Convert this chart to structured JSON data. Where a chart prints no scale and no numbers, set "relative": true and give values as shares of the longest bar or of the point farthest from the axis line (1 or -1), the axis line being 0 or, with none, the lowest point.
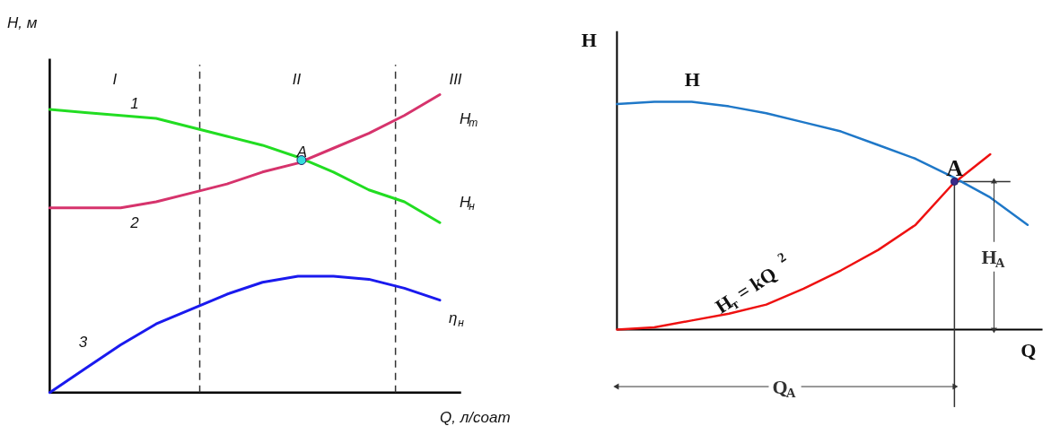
{
  "chart_data": [
    {
      "type": "line",
      "relative": true,
      "xlabel": "Q, л/соат",
      "ylabel": "H, м",
      "categories": [
        null,
        null,
        null,
        null,
        null,
        null,
        null,
        null,
        null,
        null,
        null,
        null
      ],
      "series": [
        {
          "name": "H$_{н}$",
          "color": "#22dd22",
          "values": [
            0.95,
            0.94,
            0.93,
            0.92,
            0.89,
            0.86,
            0.83,
            0.79,
            0.74,
            0.68,
            0.64,
            0.57
          ]
        },
        {
          "name": "H$_{т}$",
          "color": "#d6336c",
          "values": [
            0.62,
            0.62,
            0.62,
            0.64,
            0.67,
            0.7,
            0.74,
            0.77,
            0.82,
            0.87,
            0.93,
            1
          ]
        },
        {
          "name": "η$_{н}$",
          "color": "#1a1aee",
          "values": [
            0,
            0.08,
            0.16,
            0.23,
            0.28,
            0.33,
            0.37,
            0.39,
            0.39,
            0.38,
            0.35,
            0.31
          ]
        }
      ],
      "annotations": [
        "I",
        "II",
        "III",
        "1",
        "2",
        "3",
        {
          "text": "A",
          "y": 0.78
        }
      ]
    },
    {
      "type": "line",
      "relative": true,
      "xlabel": "Q",
      "ylabel": "H",
      "categories": [
        null,
        null,
        null,
        null,
        null,
        null,
        null,
        null,
        null,
        null,
        null,
        null
      ],
      "series": [
        {
          "name": "H",
          "color": "#1f78c8",
          "values": [
            0.99,
            1,
            1,
            0.98,
            0.95,
            0.91,
            0.87,
            0.81,
            0.75,
            0.67,
            0.58,
            0.46
          ]
        },
        {
          "name": "H$_{т}$ = kQ$^{2}$",
          "color": "#ee1111",
          "values": [
            0,
            0.01,
            0.04,
            0.07,
            0.11,
            0.18,
            0.26,
            0.35,
            0.46,
            0.64,
            0.77,
            null
          ]
        }
      ],
      "annotations": [
        {
          "text": "A",
          "y": 0.65
        },
        "Q$_{A}$",
        "H$_{A}$"
      ]
    }
  ]
}
